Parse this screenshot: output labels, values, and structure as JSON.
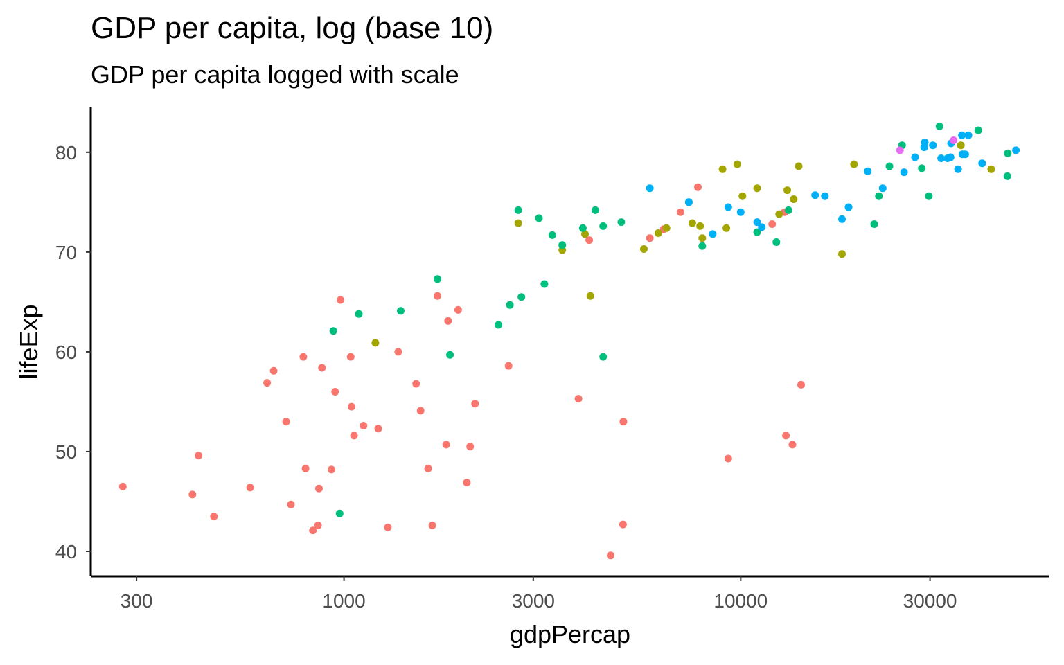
{
  "chart_data": {
    "type": "scatter",
    "title": "GDP per capita, log (base 10)",
    "subtitle": "GDP per capita logged with scale",
    "xlabel": "gdpPercap",
    "ylabel": "lifeExp",
    "x_scale": "log10",
    "xlim": [
      230,
      60000
    ],
    "ylim": [
      37.5,
      84.5
    ],
    "x_ticks": [
      300,
      1000,
      3000,
      10000,
      30000
    ],
    "x_tick_labels": [
      "300",
      "1000",
      "3000",
      "10000",
      "30000"
    ],
    "y_ticks": [
      40,
      50,
      60,
      70,
      80
    ],
    "y_tick_labels": [
      "40",
      "50",
      "60",
      "70",
      "80"
    ],
    "grid": false,
    "legend": "none",
    "colors": {
      "africa": "#F8766D",
      "americas": "#A3A500",
      "asia": "#00BF7D",
      "europe": "#00B0F6",
      "oceania": "#E76BF3"
    },
    "series": [
      {
        "color_key": "africa",
        "points": [
          [
            277,
            46.5
          ],
          [
            415,
            45.7
          ],
          [
            430,
            49.6
          ],
          [
            470,
            43.5
          ],
          [
            580,
            46.4
          ],
          [
            640,
            56.9
          ],
          [
            665,
            58.1
          ],
          [
            715,
            53.0
          ],
          [
            735,
            44.7
          ],
          [
            790,
            59.5
          ],
          [
            800,
            48.3
          ],
          [
            835,
            42.1
          ],
          [
            860,
            42.6
          ],
          [
            865,
            46.3
          ],
          [
            880,
            58.4
          ],
          [
            930,
            48.2
          ],
          [
            950,
            56.0
          ],
          [
            980,
            65.2
          ],
          [
            1040,
            59.5
          ],
          [
            1045,
            54.5
          ],
          [
            1060,
            51.6
          ],
          [
            1120,
            52.6
          ],
          [
            1220,
            52.3
          ],
          [
            1290,
            42.4
          ],
          [
            1370,
            60.0
          ],
          [
            1520,
            56.8
          ],
          [
            1560,
            54.1
          ],
          [
            1630,
            48.3
          ],
          [
            1670,
            42.6
          ],
          [
            1720,
            65.6
          ],
          [
            1810,
            50.7
          ],
          [
            1830,
            63.1
          ],
          [
            1940,
            64.2
          ],
          [
            2040,
            46.9
          ],
          [
            2080,
            50.5
          ],
          [
            2140,
            54.8
          ],
          [
            2600,
            58.6
          ],
          [
            3900,
            55.3
          ],
          [
            4150,
            71.2
          ],
          [
            4700,
            39.6
          ],
          [
            5050,
            42.7
          ],
          [
            5060,
            53.0
          ],
          [
            5900,
            71.4
          ],
          [
            6400,
            72.3
          ],
          [
            7050,
            74.0
          ],
          [
            7800,
            76.5
          ],
          [
            9300,
            49.3
          ],
          [
            12000,
            72.8
          ],
          [
            12900,
            74.0
          ],
          [
            13000,
            51.6
          ],
          [
            13500,
            50.7
          ],
          [
            14200,
            56.7
          ]
        ]
      },
      {
        "color_key": "americas",
        "points": [
          [
            1200,
            60.9
          ],
          [
            2750,
            72.9
          ],
          [
            3550,
            70.2
          ],
          [
            4050,
            71.8
          ],
          [
            4180,
            65.6
          ],
          [
            5700,
            70.3
          ],
          [
            6200,
            71.9
          ],
          [
            6500,
            72.4
          ],
          [
            7400,
            75.0
          ],
          [
            7550,
            72.9
          ],
          [
            7900,
            72.6
          ],
          [
            8000,
            71.4
          ],
          [
            9000,
            78.3
          ],
          [
            9200,
            72.4
          ],
          [
            9800,
            78.8
          ],
          [
            10100,
            75.6
          ],
          [
            11000,
            76.4
          ],
          [
            12500,
            73.8
          ],
          [
            13100,
            76.2
          ],
          [
            13600,
            75.3
          ],
          [
            14000,
            78.6
          ],
          [
            18000,
            69.8
          ],
          [
            19300,
            78.8
          ],
          [
            35900,
            80.7
          ],
          [
            42800,
            78.3
          ]
        ]
      },
      {
        "color_key": "asia",
        "points": [
          [
            940,
            62.1
          ],
          [
            975,
            43.8
          ],
          [
            1090,
            63.8
          ],
          [
            1390,
            64.1
          ],
          [
            1720,
            67.3
          ],
          [
            1850,
            59.7
          ],
          [
            2450,
            62.7
          ],
          [
            2620,
            64.7
          ],
          [
            2750,
            74.2
          ],
          [
            2800,
            65.5
          ],
          [
            3100,
            73.4
          ],
          [
            3200,
            66.8
          ],
          [
            3350,
            71.7
          ],
          [
            3550,
            70.7
          ],
          [
            4000,
            72.4
          ],
          [
            4300,
            74.2
          ],
          [
            4500,
            59.5
          ],
          [
            4500,
            72.6
          ],
          [
            5000,
            73.0
          ],
          [
            8000,
            70.6
          ],
          [
            11000,
            72.0
          ],
          [
            12300,
            71.0
          ],
          [
            13200,
            74.2
          ],
          [
            21700,
            72.8
          ],
          [
            22300,
            75.6
          ],
          [
            23700,
            78.6
          ],
          [
            25500,
            80.7
          ],
          [
            28600,
            78.4
          ],
          [
            29800,
            75.6
          ],
          [
            31700,
            82.6
          ],
          [
            39700,
            82.2
          ],
          [
            47000,
            77.6
          ],
          [
            47100,
            79.9
          ]
        ]
      },
      {
        "color_key": "europe",
        "points": [
          [
            5900,
            76.4
          ],
          [
            7400,
            75.0
          ],
          [
            8500,
            71.8
          ],
          [
            9300,
            74.5
          ],
          [
            10000,
            74.0
          ],
          [
            11000,
            73.0
          ],
          [
            11300,
            72.5
          ],
          [
            15400,
            75.7
          ],
          [
            16300,
            75.6
          ],
          [
            18000,
            73.3
          ],
          [
            18700,
            74.5
          ],
          [
            20900,
            78.1
          ],
          [
            22800,
            76.4
          ],
          [
            25800,
            78.0
          ],
          [
            27500,
            79.5
          ],
          [
            29000,
            80.5
          ],
          [
            29100,
            81.0
          ],
          [
            30500,
            80.7
          ],
          [
            32000,
            79.4
          ],
          [
            33200,
            79.4
          ],
          [
            33800,
            79.5
          ],
          [
            33900,
            80.9
          ],
          [
            35300,
            78.3
          ],
          [
            36100,
            81.7
          ],
          [
            36200,
            79.8
          ],
          [
            36800,
            79.8
          ],
          [
            37500,
            81.7
          ],
          [
            40600,
            78.9
          ],
          [
            49400,
            80.2
          ]
        ]
      },
      {
        "color_key": "oceania",
        "points": [
          [
            25200,
            80.2
          ],
          [
            34400,
            81.2
          ]
        ]
      }
    ]
  }
}
